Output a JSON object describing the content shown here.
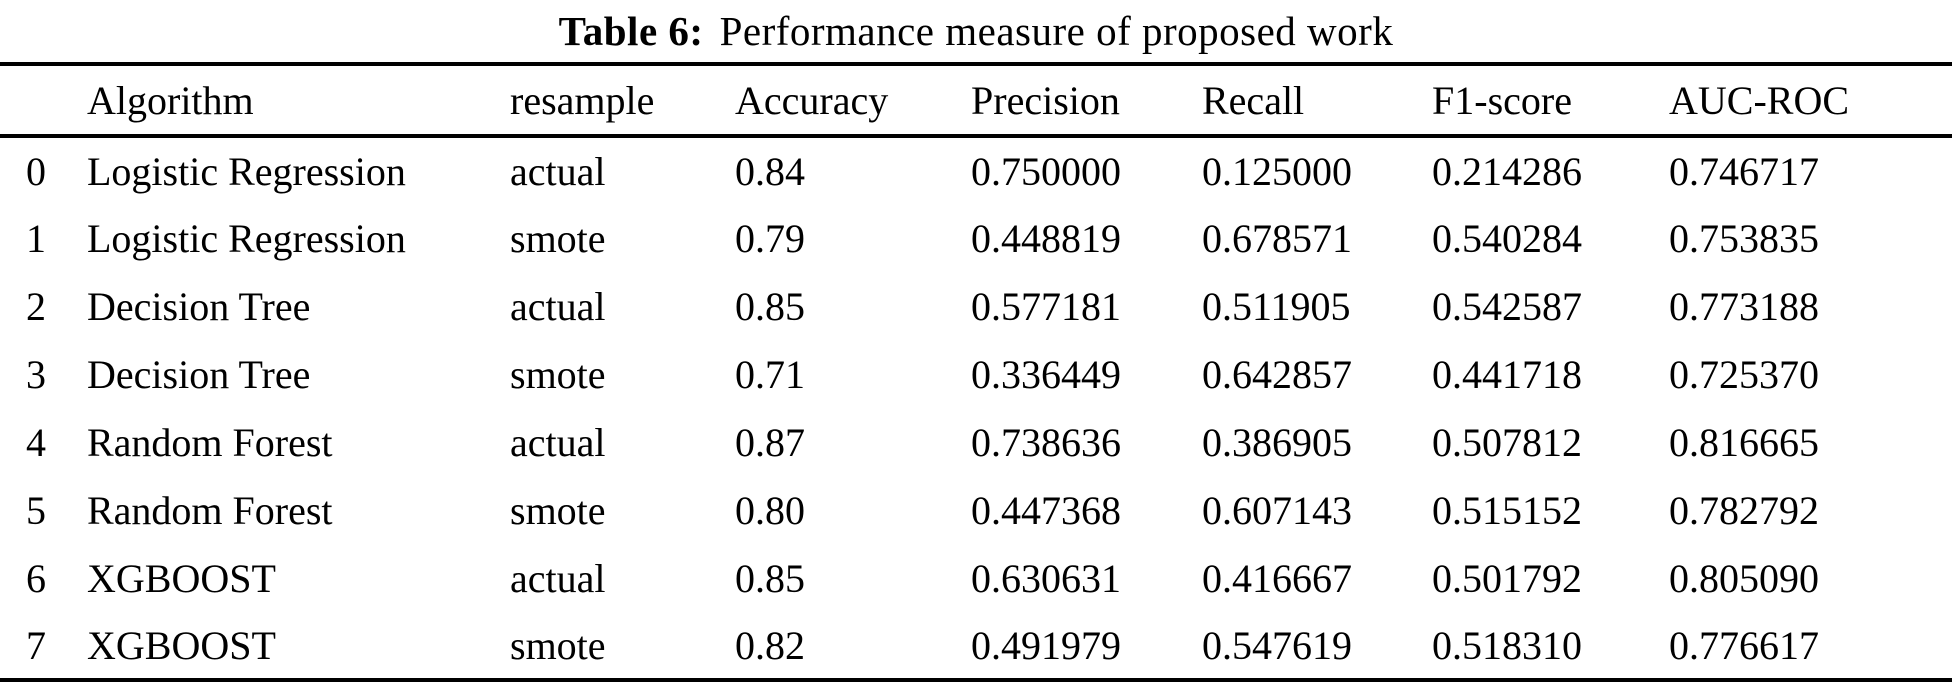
{
  "caption": {
    "label": "Table 6:",
    "text": "Performance measure of proposed work"
  },
  "table": {
    "headers": [
      "",
      "Algorithm",
      "resample",
      "Accuracy",
      "Precision",
      "Recall",
      "F1-score",
      "AUC-ROC"
    ],
    "rows": [
      [
        "0",
        "Logistic Regression",
        "actual",
        "0.84",
        "0.750000",
        "0.125000",
        "0.214286",
        "0.746717"
      ],
      [
        "1",
        "Logistic Regression",
        "smote",
        "0.79",
        "0.448819",
        "0.678571",
        "0.540284",
        "0.753835"
      ],
      [
        "2",
        "Decision Tree",
        "actual",
        "0.85",
        "0.577181",
        "0.511905",
        "0.542587",
        "0.773188"
      ],
      [
        "3",
        "Decision Tree",
        "smote",
        "0.71",
        "0.336449",
        "0.642857",
        "0.441718",
        "0.725370"
      ],
      [
        "4",
        "Random Forest",
        "actual",
        "0.87",
        "0.738636",
        "0.386905",
        "0.507812",
        "0.816665"
      ],
      [
        "5",
        "Random Forest",
        "smote",
        "0.80",
        "0.447368",
        "0.607143",
        "0.515152",
        "0.782792"
      ],
      [
        "6",
        "XGBOOST",
        "actual",
        "0.85",
        "0.630631",
        "0.416667",
        "0.501792",
        "0.805090"
      ],
      [
        "7",
        "XGBOOST",
        "smote",
        "0.82",
        "0.491979",
        "0.547619",
        "0.518310",
        "0.776617"
      ]
    ]
  },
  "colors": {
    "text": "#000000",
    "background": "#ffffff",
    "rule": "#000000"
  }
}
